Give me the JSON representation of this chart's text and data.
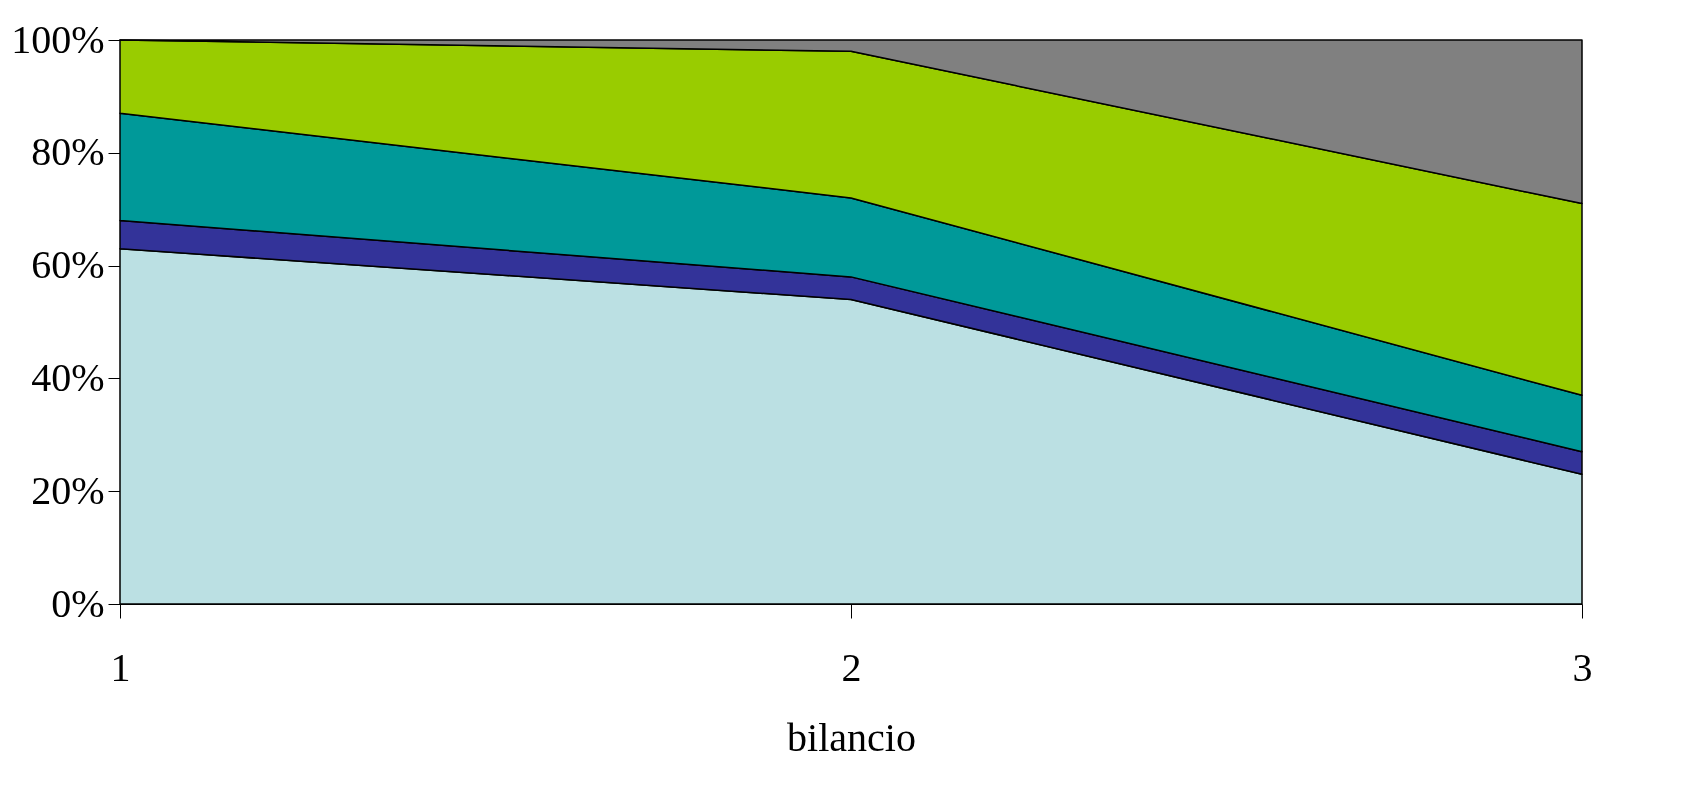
{
  "chart_data": {
    "type": "area",
    "stacked": true,
    "xlabel": "bilancio",
    "categories": [
      "1",
      "2",
      "3"
    ],
    "ylim": [
      0,
      100
    ],
    "yticks": [
      {
        "value": 0,
        "label": "0%"
      },
      {
        "value": 20,
        "label": "20%"
      },
      {
        "value": 40,
        "label": "40%"
      },
      {
        "value": 60,
        "label": "60%"
      },
      {
        "value": 80,
        "label": "80%"
      },
      {
        "value": 100,
        "label": "100%"
      }
    ],
    "grid": false,
    "series": [
      {
        "color": "#bbe0e3",
        "values": [
          63,
          54,
          23
        ]
      },
      {
        "color": "#333399",
        "values": [
          5,
          4,
          4
        ]
      },
      {
        "color": "#009999",
        "values": [
          19,
          14,
          10
        ]
      },
      {
        "color": "#99cc00",
        "values": [
          13,
          26,
          34
        ]
      },
      {
        "color": "#808080",
        "values": [
          0,
          2,
          29
        ]
      }
    ]
  }
}
